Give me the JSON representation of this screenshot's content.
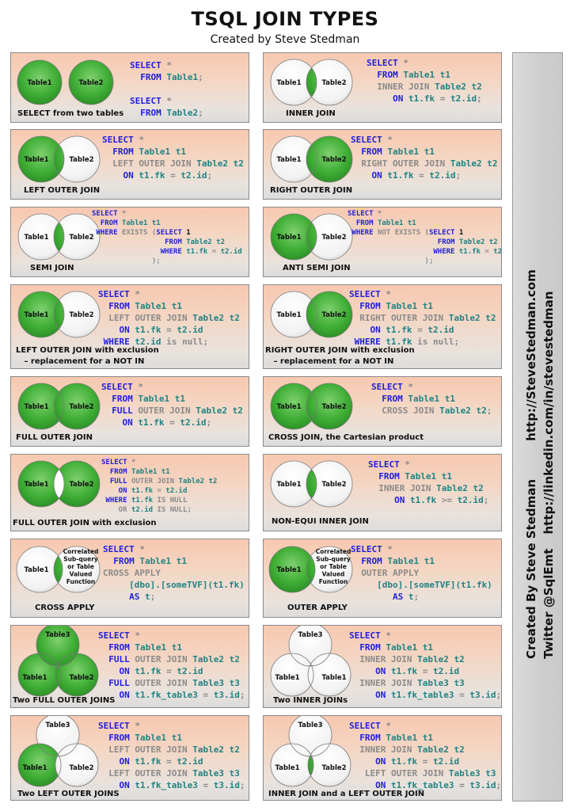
{
  "title": "TSQL JOIN TYPES",
  "subtitle": "Created by Steve Stedman",
  "sidebar": {
    "line1_prefix": "Created By Steve Stedman",
    "line1_url": "http://SteveStedman.com",
    "line2_prefix": "Twitter @SqlEmt",
    "line2_url": "http://linkedin.com/in/stevestedman"
  },
  "labels": {
    "table1": "Table1",
    "table2": "Table2",
    "table3": "Table3",
    "tvf": [
      "Correlated",
      "Sub-query",
      "or Table",
      "Valued",
      "Function"
    ]
  },
  "colors": {
    "green": "#3fae35",
    "panel_top": "#f7c8b0",
    "keyword": "#1f1fd8",
    "table_ref": "#1f8484",
    "muted": "#8a8a8a"
  },
  "panels": [
    {
      "id": "select-two-tables",
      "caption": "SELECT from two tables",
      "code": [
        [
          [
            "kw",
            "SELECT "
          ],
          [
            "gr",
            "*"
          ]
        ],
        [
          [
            "kw",
            "  FROM "
          ],
          [
            "tl",
            "Table1"
          ],
          [
            "gr",
            ";"
          ]
        ],
        [],
        [
          [
            "kw",
            "SELECT "
          ],
          [
            "gr",
            "*"
          ]
        ],
        [
          [
            "kw",
            "  FROM "
          ],
          [
            "tl",
            "Table2"
          ],
          [
            "gr",
            ";"
          ]
        ]
      ]
    },
    {
      "id": "inner-join",
      "caption": "INNER JOIN",
      "code": [
        [
          [
            "kw",
            "SELECT "
          ],
          [
            "gr",
            "*"
          ]
        ],
        [
          [
            "kw",
            "  FROM "
          ],
          [
            "tl",
            "Table1 t1"
          ]
        ],
        [
          [
            "gr",
            "  INNER JOIN "
          ],
          [
            "tl",
            "Table2 t2"
          ]
        ],
        [
          [
            "kw",
            "     ON "
          ],
          [
            "tl",
            "t1.fk"
          ],
          [
            "gr",
            " = "
          ],
          [
            "tl",
            "t2.id"
          ],
          [
            "gr",
            ";"
          ]
        ]
      ]
    },
    {
      "id": "left-outer-join",
      "caption": "LEFT OUTER JOIN",
      "code": [
        [
          [
            "kw",
            "SELECT "
          ],
          [
            "gr",
            "*"
          ]
        ],
        [
          [
            "kw",
            "  FROM "
          ],
          [
            "tl",
            "Table1 t1"
          ]
        ],
        [
          [
            "gr",
            "  LEFT OUTER JOIN "
          ],
          [
            "tl",
            "Table2 t2"
          ]
        ],
        [
          [
            "kw",
            "    ON "
          ],
          [
            "tl",
            "t1.fk"
          ],
          [
            "gr",
            " = "
          ],
          [
            "tl",
            "t2.id"
          ],
          [
            "gr",
            ";"
          ]
        ]
      ]
    },
    {
      "id": "right-outer-join",
      "caption": "RIGHT OUTER JOIN",
      "code": [
        [
          [
            "kw",
            "SELECT "
          ],
          [
            "gr",
            "*"
          ]
        ],
        [
          [
            "kw",
            "  FROM "
          ],
          [
            "tl",
            "Table1 t1"
          ]
        ],
        [
          [
            "gr",
            "  RIGHT OUTER JOIN "
          ],
          [
            "tl",
            "Table2 t2"
          ]
        ],
        [
          [
            "kw",
            "    ON "
          ],
          [
            "tl",
            "t1.fk"
          ],
          [
            "gr",
            " = "
          ],
          [
            "tl",
            "t2.id"
          ],
          [
            "gr",
            ";"
          ]
        ]
      ]
    },
    {
      "id": "semi-join",
      "caption": "SEMI JOIN",
      "code": [
        [
          [
            "kw",
            "SELECT "
          ],
          [
            "gr",
            "*"
          ]
        ],
        [
          [
            "kw",
            "  FROM "
          ],
          [
            "tl",
            "Table1 t1"
          ]
        ],
        [
          [
            "kw",
            " WHERE "
          ],
          [
            "gr",
            "EXISTS ("
          ],
          [
            "kw",
            "SELECT "
          ],
          [
            "bk",
            "1"
          ]
        ],
        [
          [
            "kw",
            "                 FROM "
          ],
          [
            "tl",
            "Table2 t2"
          ]
        ],
        [
          [
            "kw",
            "                WHERE "
          ],
          [
            "tl",
            "t1.fk"
          ],
          [
            "gr",
            " = "
          ],
          [
            "tl",
            "t2.id"
          ]
        ],
        [
          [
            "gr",
            "              );"
          ]
        ]
      ]
    },
    {
      "id": "anti-semi-join",
      "caption": "ANTI SEMI JOIN",
      "code": [
        [
          [
            "kw",
            "SELECT "
          ],
          [
            "gr",
            "*"
          ]
        ],
        [
          [
            "kw",
            "  FROM "
          ],
          [
            "tl",
            "Table1 t1"
          ]
        ],
        [
          [
            "kw",
            " WHERE "
          ],
          [
            "gr",
            "NOT EXISTS ("
          ],
          [
            "kw",
            "SELECT "
          ],
          [
            "bk",
            "1"
          ]
        ],
        [
          [
            "kw",
            "                     FROM "
          ],
          [
            "tl",
            "Table2 t2"
          ]
        ],
        [
          [
            "kw",
            "                    WHERE "
          ],
          [
            "tl",
            "t1.fk"
          ],
          [
            "gr",
            " = "
          ],
          [
            "tl",
            "t2.id"
          ]
        ],
        [
          [
            "gr",
            "                  );"
          ]
        ]
      ]
    },
    {
      "id": "left-outer-join-exclusion",
      "caption": "LEFT OUTER JOIN with exclusion\n   – replacement for a NOT IN",
      "code": [
        [
          [
            "kw",
            "SELECT "
          ],
          [
            "gr",
            "*"
          ]
        ],
        [
          [
            "kw",
            "  FROM "
          ],
          [
            "tl",
            "Table1 t1"
          ]
        ],
        [
          [
            "gr",
            "  LEFT OUTER JOIN "
          ],
          [
            "tl",
            "Table2 t2"
          ]
        ],
        [
          [
            "kw",
            "    ON "
          ],
          [
            "tl",
            "t1.fk"
          ],
          [
            "gr",
            " = "
          ],
          [
            "tl",
            "t2.id"
          ]
        ],
        [
          [
            "kw",
            " WHERE "
          ],
          [
            "tl",
            "t2.id"
          ],
          [
            "gr",
            " is null;"
          ]
        ]
      ]
    },
    {
      "id": "right-outer-join-exclusion",
      "caption": "RIGHT OUTER JOIN with exclusion\n   – replacement for a NOT IN",
      "code": [
        [
          [
            "kw",
            "SELECT "
          ],
          [
            "gr",
            "*"
          ]
        ],
        [
          [
            "kw",
            "  FROM "
          ],
          [
            "tl",
            "Table1 t1"
          ]
        ],
        [
          [
            "gr",
            "  RIGHT OUTER JOIN "
          ],
          [
            "tl",
            "Table2 t2"
          ]
        ],
        [
          [
            "kw",
            "    ON "
          ],
          [
            "tl",
            "t1.fk"
          ],
          [
            "gr",
            " = "
          ],
          [
            "tl",
            "t2.id"
          ]
        ],
        [
          [
            "kw",
            " WHERE "
          ],
          [
            "tl",
            "t1.fk"
          ],
          [
            "gr",
            " is null;"
          ]
        ]
      ]
    },
    {
      "id": "full-outer-join",
      "caption": "FULL OUTER JOIN",
      "code": [
        [
          [
            "kw",
            "SELECT "
          ],
          [
            "gr",
            "*"
          ]
        ],
        [
          [
            "kw",
            "  FROM "
          ],
          [
            "tl",
            "Table1 t1"
          ]
        ],
        [
          [
            "kw",
            "  FULL "
          ],
          [
            "gr",
            "OUTER JOIN "
          ],
          [
            "tl",
            "Table2 t2"
          ]
        ],
        [
          [
            "kw",
            "    ON "
          ],
          [
            "tl",
            "t1.fk"
          ],
          [
            "gr",
            " = "
          ],
          [
            "tl",
            "t2.id"
          ],
          [
            "gr",
            ";"
          ]
        ]
      ]
    },
    {
      "id": "cross-join",
      "caption": "CROSS JOIN, the Cartesian product",
      "code": [
        [
          [
            "kw",
            "SELECT "
          ],
          [
            "gr",
            "*"
          ]
        ],
        [
          [
            "kw",
            "  FROM "
          ],
          [
            "tl",
            "Table1 t1"
          ]
        ],
        [
          [
            "gr",
            "  CROSS JOIN "
          ],
          [
            "tl",
            "Table2 t2"
          ],
          [
            "gr",
            ";"
          ]
        ]
      ]
    },
    {
      "id": "full-outer-join-exclusion",
      "caption": "FULL OUTER JOIN with exclusion",
      "code": [
        [
          [
            "kw",
            "SELECT "
          ],
          [
            "gr",
            "*"
          ]
        ],
        [
          [
            "kw",
            "  FROM "
          ],
          [
            "tl",
            "Table1 t1"
          ]
        ],
        [
          [
            "kw",
            "  FULL "
          ],
          [
            "gr",
            "OUTER JOIN "
          ],
          [
            "tl",
            "Table2 t2"
          ]
        ],
        [
          [
            "kw",
            "    ON "
          ],
          [
            "tl",
            "t1.fk"
          ],
          [
            "gr",
            " = "
          ],
          [
            "tl",
            "t2.id"
          ]
        ],
        [
          [
            "kw",
            " WHERE "
          ],
          [
            "tl",
            "t1.fk"
          ],
          [
            "gr",
            " IS NULL"
          ]
        ],
        [
          [
            "gr",
            "    OR "
          ],
          [
            "tl",
            "t2.id"
          ],
          [
            "gr",
            " IS NULL;"
          ]
        ]
      ]
    },
    {
      "id": "non-equi-inner-join",
      "caption": "NON-EQUI INNER JOIN",
      "code": [
        [
          [
            "kw",
            "SELECT "
          ],
          [
            "gr",
            "*"
          ]
        ],
        [
          [
            "kw",
            "  FROM "
          ],
          [
            "tl",
            "Table1 t1"
          ]
        ],
        [
          [
            "gr",
            "  INNER JOIN "
          ],
          [
            "tl",
            "Table2 t2"
          ]
        ],
        [
          [
            "kw",
            "     ON "
          ],
          [
            "tl",
            "t1.fk"
          ],
          [
            "gr",
            " >= "
          ],
          [
            "tl",
            "t2.id"
          ],
          [
            "gr",
            ";"
          ]
        ]
      ]
    },
    {
      "id": "cross-apply",
      "caption": "CROSS APPLY",
      "code": [
        [
          [
            "kw",
            "SELECT "
          ],
          [
            "gr",
            "*"
          ]
        ],
        [
          [
            "kw",
            "  FROM "
          ],
          [
            "tl",
            "Table1 t1"
          ]
        ],
        [
          [
            "gr",
            "CROSS APPLY"
          ]
        ],
        [
          [
            "tl",
            "     [dbo].[someTVF](t1.fk)"
          ]
        ],
        [
          [
            "kw",
            "     AS "
          ],
          [
            "tl",
            "t"
          ],
          [
            "gr",
            ";"
          ]
        ]
      ]
    },
    {
      "id": "outer-apply",
      "caption": "OUTER APPLY",
      "code": [
        [
          [
            "kw",
            "SELECT "
          ],
          [
            "gr",
            "*"
          ]
        ],
        [
          [
            "kw",
            "  FROM "
          ],
          [
            "tl",
            "Table1 t1"
          ]
        ],
        [
          [
            "gr",
            "  OUTER APPLY"
          ]
        ],
        [
          [
            "tl",
            "     [dbo].[someTVF](t1.fk)"
          ]
        ],
        [
          [
            "kw",
            "        AS "
          ],
          [
            "tl",
            "t"
          ],
          [
            "gr",
            ";"
          ]
        ]
      ]
    },
    {
      "id": "two-full-outer-joins",
      "caption": "Two FULL OUTER JOINS",
      "code": [
        [
          [
            "kw",
            "SELECT "
          ],
          [
            "gr",
            "*"
          ]
        ],
        [
          [
            "kw",
            "  FROM "
          ],
          [
            "tl",
            "Table1 t1"
          ]
        ],
        [
          [
            "kw",
            "  FULL "
          ],
          [
            "gr",
            "OUTER JOIN "
          ],
          [
            "tl",
            "Table2 t2"
          ]
        ],
        [
          [
            "kw",
            "    ON "
          ],
          [
            "tl",
            "t1.fk"
          ],
          [
            "gr",
            " = "
          ],
          [
            "tl",
            "t2.id"
          ]
        ],
        [
          [
            "kw",
            "  FULL "
          ],
          [
            "gr",
            "OUTER JOIN "
          ],
          [
            "tl",
            "Table3 t3"
          ]
        ],
        [
          [
            "kw",
            "    ON "
          ],
          [
            "tl",
            "t1.fk_table3"
          ],
          [
            "gr",
            " = "
          ],
          [
            "tl",
            "t3.id"
          ],
          [
            "gr",
            ";"
          ]
        ]
      ]
    },
    {
      "id": "two-inner-joins",
      "caption": "Two INNER JOINs",
      "code": [
        [
          [
            "kw",
            "SELECT "
          ],
          [
            "gr",
            "*"
          ]
        ],
        [
          [
            "kw",
            "  FROM "
          ],
          [
            "tl",
            "Table1 t1"
          ]
        ],
        [
          [
            "gr",
            "  INNER JOIN "
          ],
          [
            "tl",
            "Table2 t2"
          ]
        ],
        [
          [
            "kw",
            "     ON "
          ],
          [
            "tl",
            "t1.fk"
          ],
          [
            "gr",
            " = "
          ],
          [
            "tl",
            "t2.id"
          ]
        ],
        [
          [
            "gr",
            "  INNER JOIN "
          ],
          [
            "tl",
            "Table3 t3"
          ]
        ],
        [
          [
            "kw",
            "     ON "
          ],
          [
            "tl",
            "t1.fk_table3"
          ],
          [
            "gr",
            " = "
          ],
          [
            "tl",
            "t3.id"
          ],
          [
            "gr",
            ";"
          ]
        ]
      ]
    },
    {
      "id": "two-left-outer-joins",
      "caption": "Two LEFT OUTER JOINS",
      "code": [
        [
          [
            "kw",
            "SELECT "
          ],
          [
            "gr",
            "*"
          ]
        ],
        [
          [
            "kw",
            "  FROM "
          ],
          [
            "tl",
            "Table1 t1"
          ]
        ],
        [
          [
            "gr",
            "  LEFT OUTER JOIN "
          ],
          [
            "tl",
            "Table2 t2"
          ]
        ],
        [
          [
            "kw",
            "    ON "
          ],
          [
            "tl",
            "t1.fk"
          ],
          [
            "gr",
            " = "
          ],
          [
            "tl",
            "t2.id"
          ]
        ],
        [
          [
            "gr",
            "  LEFT OUTER JOIN "
          ],
          [
            "tl",
            "Table3 t3"
          ]
        ],
        [
          [
            "kw",
            "    ON "
          ],
          [
            "tl",
            "t1.fk_table3"
          ],
          [
            "gr",
            " = "
          ],
          [
            "tl",
            "t3.id"
          ],
          [
            "gr",
            ";"
          ]
        ]
      ]
    },
    {
      "id": "inner-and-left-outer-join",
      "caption": "INNER JOIN and a LEFT OUTER JOIN",
      "code": [
        [
          [
            "kw",
            "SELECT "
          ],
          [
            "gr",
            "*"
          ]
        ],
        [
          [
            "kw",
            "  FROM "
          ],
          [
            "tl",
            "Table1 t1"
          ]
        ],
        [
          [
            "gr",
            "  INNER JOIN "
          ],
          [
            "tl",
            "Table2 t2"
          ]
        ],
        [
          [
            "kw",
            "     ON "
          ],
          [
            "tl",
            "t1.fk"
          ],
          [
            "gr",
            " = "
          ],
          [
            "tl",
            "t2.id"
          ]
        ],
        [
          [
            "gr",
            "   LEFT OUTER JOIN "
          ],
          [
            "tl",
            "Table3 t3"
          ]
        ],
        [
          [
            "kw",
            "     ON "
          ],
          [
            "tl",
            "t1.fk_table3"
          ],
          [
            "gr",
            " = "
          ],
          [
            "tl",
            "t3.id"
          ],
          [
            "gr",
            ";"
          ]
        ]
      ]
    }
  ]
}
